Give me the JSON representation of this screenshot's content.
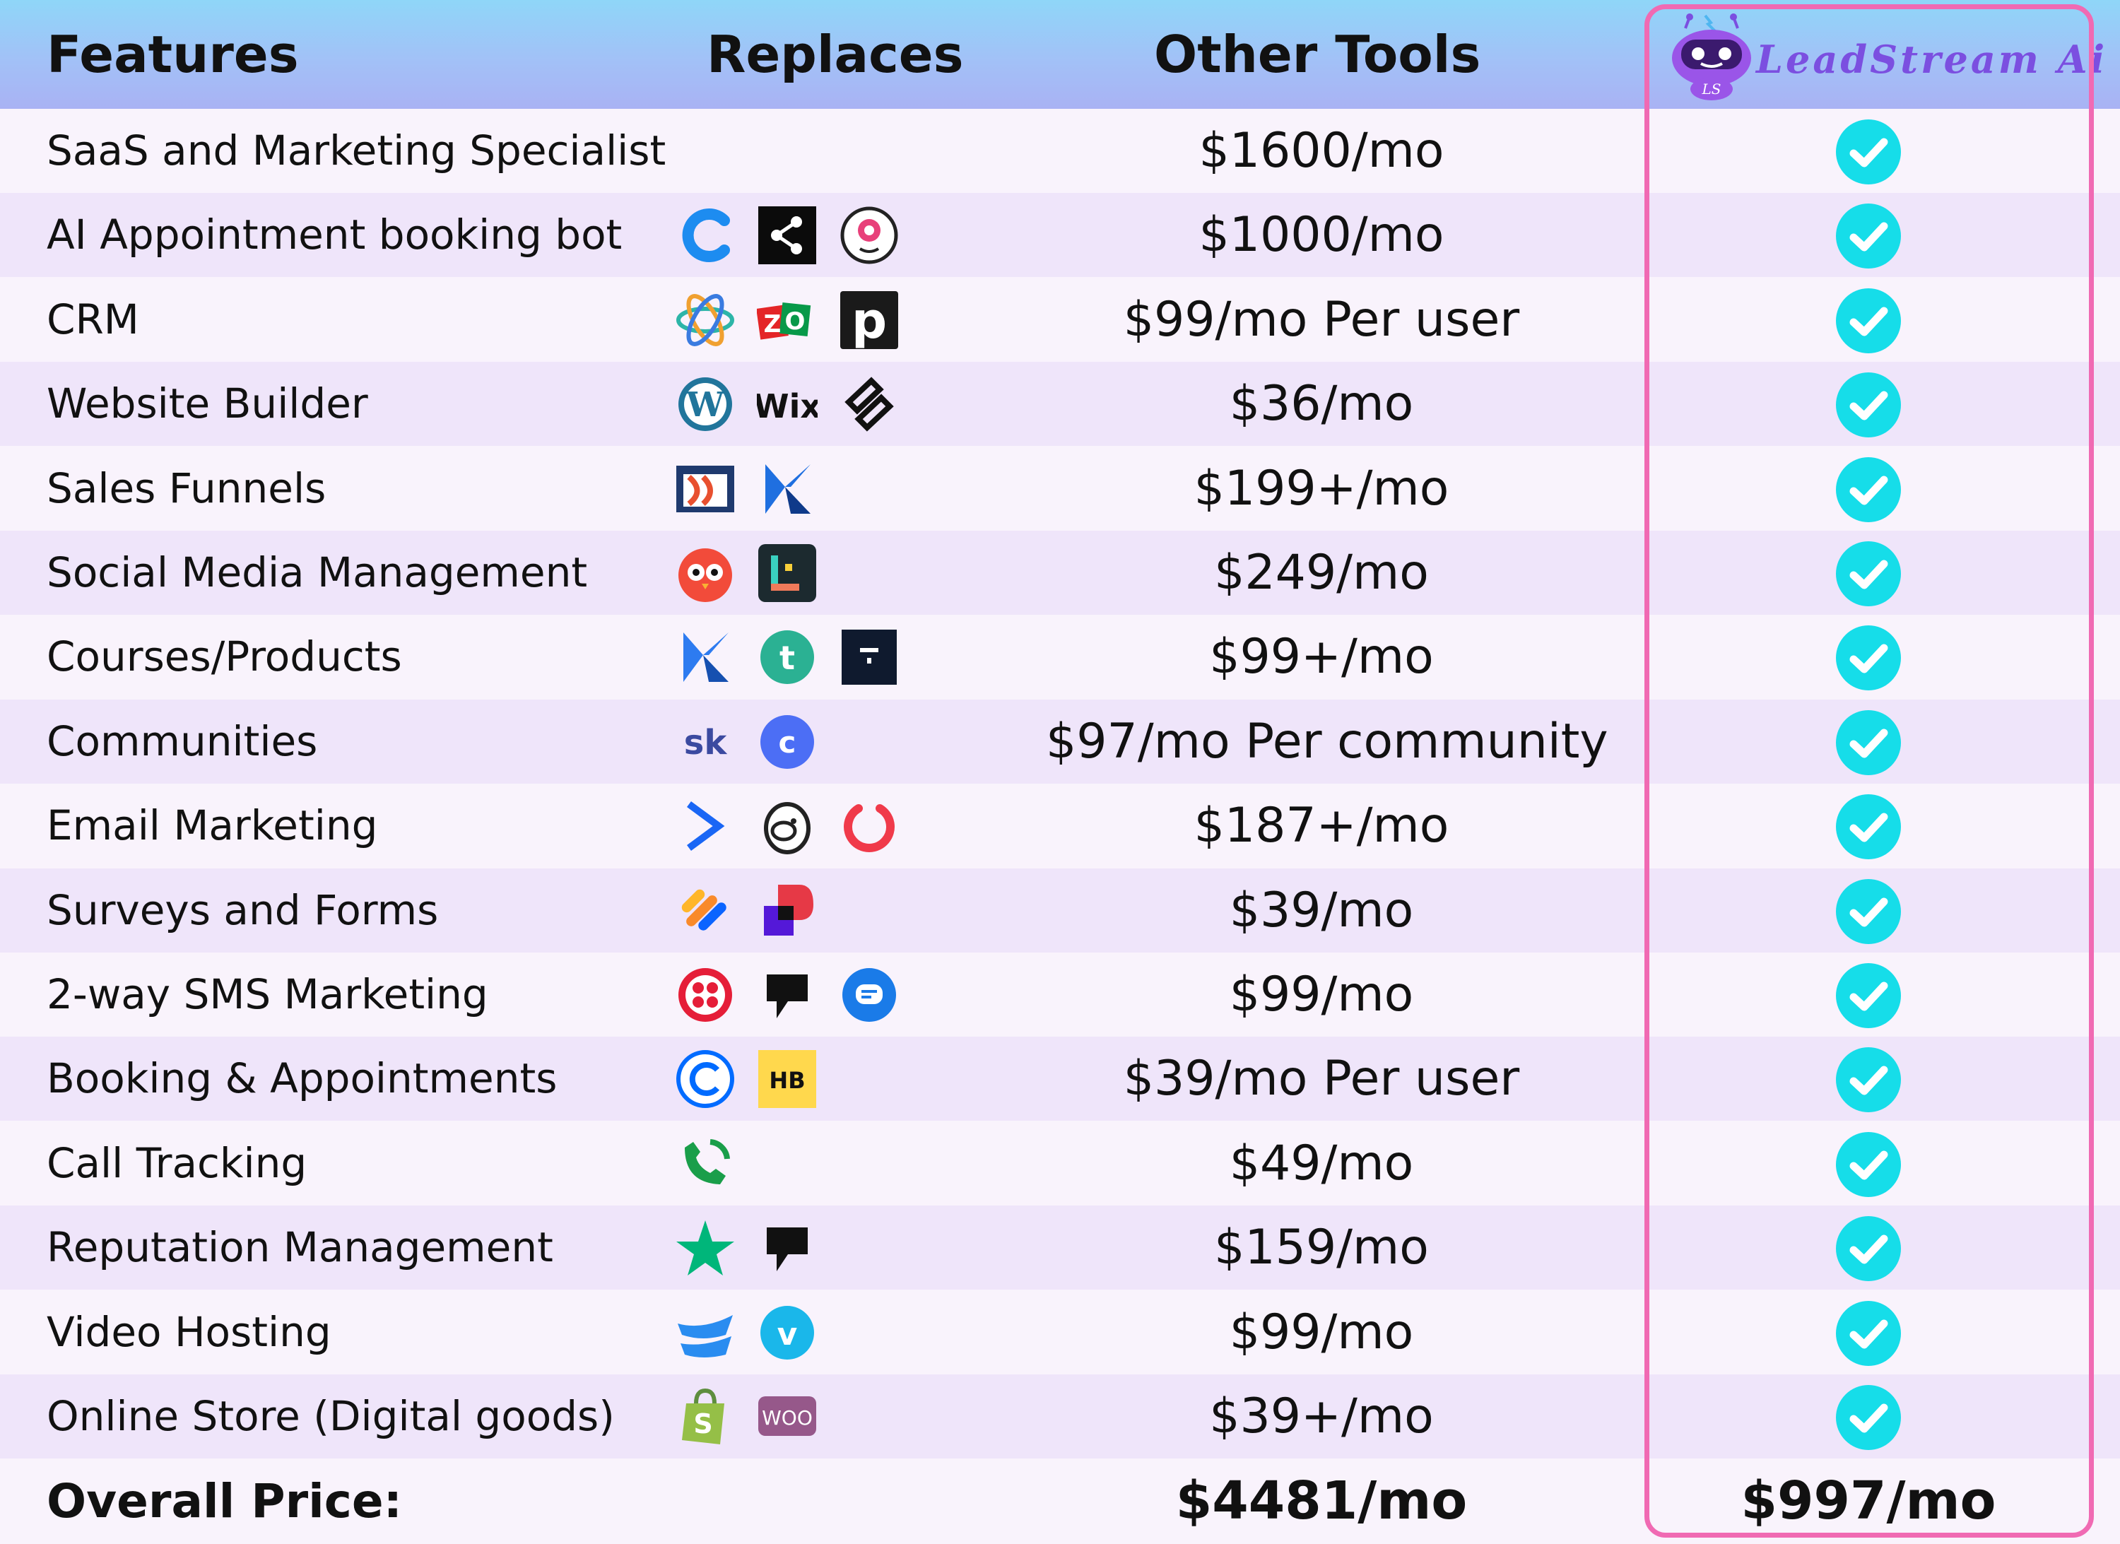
{
  "header": {
    "features": "Features",
    "replaces": "Replaces",
    "other_tools": "Other Tools",
    "brand_name": "LeadStream Ai",
    "brand_badge": "LS"
  },
  "rows": [
    {
      "feature": "SaaS and Marketing Specialist",
      "price": "$1600/mo",
      "logos": []
    },
    {
      "feature": "AI Appointment booking bot",
      "price": "$1000/mo",
      "logos": [
        "c-blue-logo",
        "share-square-logo",
        "camera-chat-logo"
      ]
    },
    {
      "feature": "CRM",
      "price": "$99/mo Per user",
      "logos": [
        "atom-logo",
        "zoho-logo",
        "pipedrive-logo"
      ]
    },
    {
      "feature": "Website Builder",
      "price": "$36/mo",
      "logos": [
        "wordpress-logo",
        "wix-logo",
        "squarespace-logo"
      ]
    },
    {
      "feature": "Sales Funnels",
      "price": "$199+/mo",
      "logos": [
        "clickfunnels-logo",
        "kartra-logo"
      ]
    },
    {
      "feature": "Social Media Management",
      "price": "$249/mo",
      "logos": [
        "hootsuite-logo",
        "later-logo"
      ]
    },
    {
      "feature": "Courses/Products",
      "price": "$99+/mo",
      "logos": [
        "kajabi-logo",
        "teachable-logo",
        "thinkific-logo"
      ]
    },
    {
      "feature": "Communities",
      "price": "$97/mo Per community",
      "logos": [
        "skool-logo",
        "circle-logo"
      ]
    },
    {
      "feature": "Email Marketing",
      "price": "$187+/mo",
      "logos": [
        "activecampaign-logo",
        "mailchimp-logo",
        "keap-logo"
      ]
    },
    {
      "feature": "Surveys and Forms",
      "price": "$39/mo",
      "logos": [
        "jotform-logo",
        "typeform-logo"
      ]
    },
    {
      "feature": "2-way SMS Marketing",
      "price": "$99/mo",
      "logos": [
        "twilio-logo",
        "podium-logo",
        "textline-logo"
      ]
    },
    {
      "feature": "Booking & Appointments",
      "price": "$39/mo Per user",
      "logos": [
        "calendly-logo",
        "honeybook-logo"
      ]
    },
    {
      "feature": "Call Tracking",
      "price": "$49/mo",
      "logos": [
        "callrail-logo"
      ]
    },
    {
      "feature": "Reputation Management",
      "price": "$159/mo",
      "logos": [
        "trustpilot-logo",
        "podium-logo"
      ]
    },
    {
      "feature": "Video Hosting",
      "price": "$99/mo",
      "logos": [
        "wistia-logo",
        "vimeo-logo"
      ]
    },
    {
      "feature": "Online Store (Digital goods)",
      "price": "$39+/mo",
      "logos": [
        "shopify-logo",
        "woo-logo"
      ]
    }
  ],
  "total": {
    "label": "Overall Price:",
    "other_tools": "$4481/mo",
    "leadstream": "$997/mo"
  },
  "colors": {
    "check": "#16dde9",
    "frame": "#f06ab3",
    "brand": "#7b4fe0",
    "header_top": "#8fd6f8",
    "header_bottom": "#a9b2f4",
    "row_light": "#f9f3fc",
    "row_dark": "#efe5fa"
  }
}
